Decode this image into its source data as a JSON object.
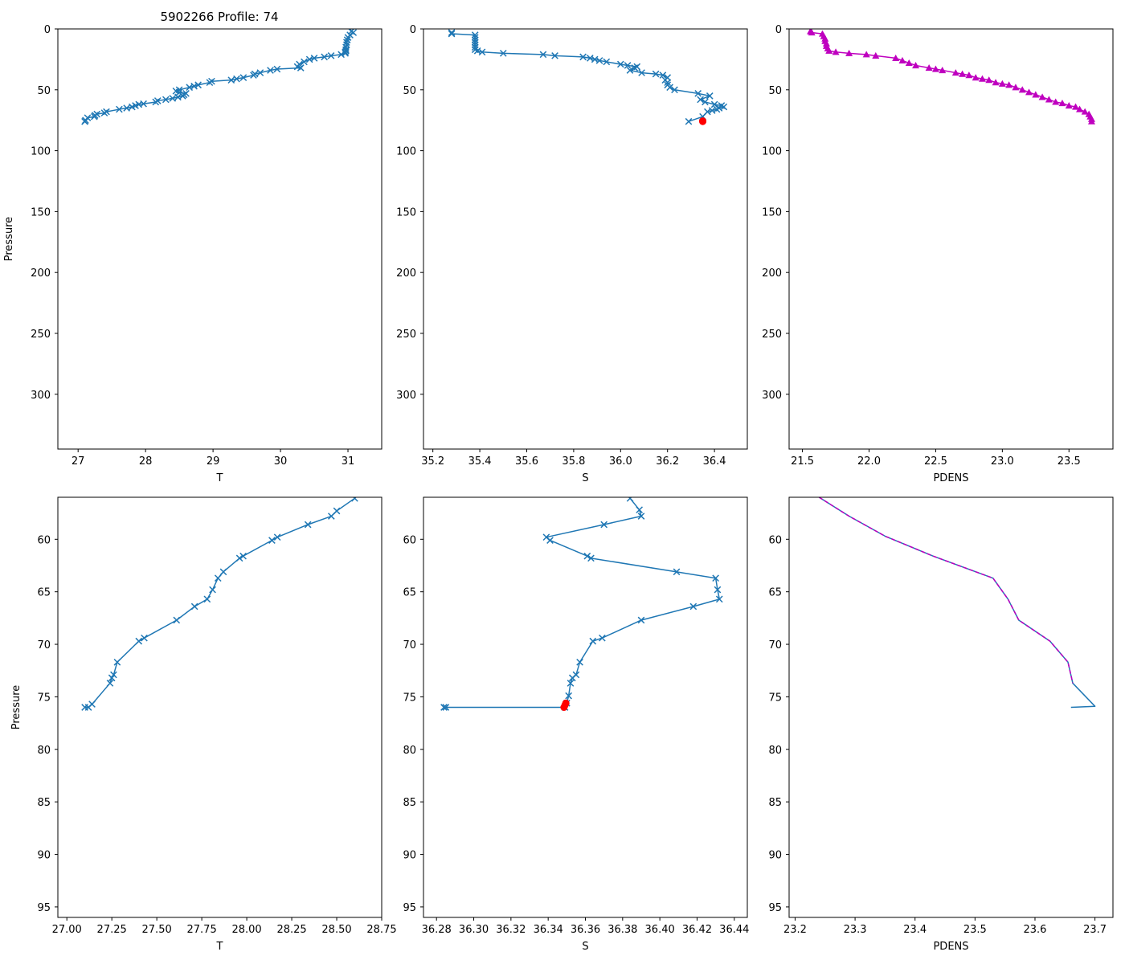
{
  "figure_title": "5902266 Profile: 74",
  "chart_data": [
    {
      "type": "line",
      "panel": "top-left",
      "xlabel": "T",
      "ylabel": "Pressure",
      "xlim": [
        26.7,
        31.5
      ],
      "ylim": [
        345,
        0
      ],
      "y_inverted": true,
      "xticks": [
        27,
        28,
        29,
        30,
        31
      ],
      "xtick_labels": [
        "27",
        "28",
        "29",
        "30",
        "31"
      ],
      "yticks": [
        0,
        50,
        100,
        150,
        200,
        250,
        300
      ],
      "ytick_labels": [
        "0",
        "50",
        "100",
        "150",
        "200",
        "250",
        "300"
      ],
      "series": [
        {
          "name": "T profile",
          "color": "#1f77b4",
          "marker": "x",
          "x": [
            31.05,
            31.08,
            31.03,
            31.0,
            30.99,
            30.98,
            30.98,
            30.97,
            30.97,
            30.97,
            30.96,
            30.96,
            30.9,
            30.75,
            30.65,
            30.5,
            30.43,
            30.35,
            30.28,
            30.25,
            30.3,
            29.95,
            29.85,
            29.7,
            29.62,
            29.6,
            29.45,
            29.35,
            29.27,
            28.98,
            28.95,
            28.78,
            28.72,
            28.65,
            28.5,
            28.45,
            28.5,
            28.6,
            28.57,
            28.55,
            28.48,
            28.4,
            28.3,
            28.18,
            28.15,
            27.97,
            27.9,
            27.85,
            27.8,
            27.72,
            27.61,
            27.42,
            27.39,
            27.28,
            27.25,
            27.24,
            27.14,
            27.11,
            27.1
          ],
          "y": [
            2,
            3,
            5,
            7,
            9,
            11,
            13,
            15,
            17,
            18,
            19,
            20,
            21,
            22,
            23,
            24,
            25,
            27,
            29,
            31,
            32,
            33,
            34,
            36,
            37,
            38,
            40,
            41,
            42,
            43,
            44,
            46,
            47,
            48,
            50,
            51,
            52,
            53,
            54,
            55,
            56,
            57,
            58,
            59,
            60,
            61.5,
            62,
            63,
            64,
            65,
            66,
            68,
            69,
            70,
            71,
            72,
            73,
            75,
            76
          ]
        },
        {
          "name": "T profile end",
          "color": "#1f77b4",
          "marker": "x",
          "x": [
            27.1
          ],
          "y": [
            76
          ]
        }
      ]
    },
    {
      "type": "line",
      "panel": "top-middle",
      "xlabel": "S",
      "ylabel": "",
      "xlim": [
        35.16,
        36.54
      ],
      "ylim": [
        345,
        0
      ],
      "y_inverted": true,
      "xticks": [
        35.2,
        35.4,
        35.6,
        35.8,
        36.0,
        36.2,
        36.4
      ],
      "xtick_labels": [
        "35.2",
        "35.4",
        "35.6",
        "35.8",
        "36.0",
        "36.2",
        "36.4"
      ],
      "yticks": [
        0,
        50,
        100,
        150,
        200,
        250,
        300
      ],
      "ytick_labels": [
        "0",
        "50",
        "100",
        "150",
        "200",
        "250",
        "300"
      ],
      "series": [
        {
          "name": "S profile",
          "color": "#1f77b4",
          "marker": "x",
          "x": [
            35.28,
            35.28,
            35.38,
            35.38,
            35.38,
            35.38,
            35.38,
            35.38,
            35.38,
            35.39,
            35.41,
            35.5,
            35.67,
            35.72,
            35.84,
            35.87,
            35.89,
            35.91,
            35.94,
            36.0,
            36.03,
            36.07,
            36.06,
            36.04,
            36.09,
            36.15,
            36.18,
            36.2,
            36.19,
            36.2,
            36.2,
            36.21,
            36.23,
            36.33,
            36.38,
            36.34,
            36.36,
            36.4,
            36.43,
            36.44,
            36.42,
            36.41,
            36.39,
            36.37,
            36.35,
            36.29
          ],
          "y": [
            3,
            4,
            5,
            7,
            9,
            11,
            13,
            15,
            17,
            18,
            19,
            20,
            21,
            22,
            23,
            24,
            25,
            26,
            27,
            29,
            30,
            31,
            32,
            34,
            36,
            37,
            38,
            40,
            42,
            44,
            46,
            48,
            50,
            53,
            55,
            58,
            60,
            62,
            63,
            64,
            65,
            66,
            67,
            68,
            72,
            76
          ]
        },
        {
          "name": "S flagged",
          "color": "#ff0000",
          "marker": "o",
          "x": [
            36.35,
            36.35
          ],
          "y": [
            75.6,
            76
          ]
        }
      ]
    },
    {
      "type": "line",
      "panel": "top-right",
      "xlabel": "PDENS",
      "ylabel": "",
      "xlim": [
        21.4,
        23.83
      ],
      "ylim": [
        345,
        0
      ],
      "y_inverted": true,
      "xticks": [
        21.5,
        22.0,
        22.5,
        23.0,
        23.5
      ],
      "xtick_labels": [
        "21.5",
        "22.0",
        "22.5",
        "23.0",
        "23.5"
      ],
      "yticks": [
        0,
        50,
        100,
        150,
        200,
        250,
        300
      ],
      "ytick_labels": [
        "0",
        "50",
        "100",
        "150",
        "200",
        "250",
        "300"
      ],
      "series": [
        {
          "name": "PDENS profile",
          "color": "#bf00bf",
          "marker": "^",
          "x": [
            21.56,
            21.57,
            21.65,
            21.66,
            21.67,
            21.67,
            21.68,
            21.68,
            21.69,
            21.7,
            21.75,
            21.85,
            21.98,
            22.05,
            22.2,
            22.25,
            22.3,
            22.35,
            22.45,
            22.5,
            22.55,
            22.65,
            22.7,
            22.75,
            22.8,
            22.85,
            22.9,
            22.95,
            23.0,
            23.05,
            23.1,
            23.15,
            23.2,
            23.25,
            23.3,
            23.35,
            23.4,
            23.45,
            23.5,
            23.55,
            23.58,
            23.62,
            23.65,
            23.66,
            23.67,
            23.67
          ],
          "y": [
            2,
            3,
            4,
            6,
            8,
            10,
            12,
            14,
            16,
            18,
            19,
            20,
            21,
            22,
            24,
            26,
            28,
            30,
            32,
            33,
            34,
            36,
            37,
            38,
            40,
            41,
            42,
            44,
            45,
            46,
            48,
            50,
            52,
            54,
            56,
            58,
            60,
            61,
            63,
            64,
            66,
            68,
            70,
            72,
            74,
            76
          ]
        }
      ]
    },
    {
      "type": "line",
      "panel": "bottom-left",
      "xlabel": "T",
      "ylabel": "Pressure",
      "xlim": [
        26.95,
        28.75
      ],
      "ylim": [
        96,
        56
      ],
      "y_inverted": true,
      "xticks": [
        27.0,
        27.25,
        27.5,
        27.75,
        28.0,
        28.25,
        28.5,
        28.75
      ],
      "xtick_labels": [
        "27.00",
        "27.25",
        "27.50",
        "27.75",
        "28.00",
        "28.25",
        "28.50",
        "28.75"
      ],
      "yticks": [
        60,
        65,
        70,
        75,
        80,
        85,
        90,
        95
      ],
      "ytick_labels": [
        "60",
        "65",
        "70",
        "75",
        "80",
        "85",
        "90",
        "95"
      ],
      "series": [
        {
          "name": "T profile (zoom)",
          "color": "#1f77b4",
          "marker": "x",
          "x": [
            28.6,
            28.5,
            28.47,
            28.34,
            28.17,
            28.14,
            27.98,
            27.96,
            27.87,
            27.84,
            27.81,
            27.78,
            27.71,
            27.61,
            27.43,
            27.4,
            27.28,
            27.26,
            27.25,
            27.24,
            27.14,
            27.12,
            27.1
          ],
          "y": [
            56.1,
            57.3,
            57.8,
            58.6,
            59.8,
            60.1,
            61.6,
            61.8,
            63.1,
            63.7,
            64.8,
            65.7,
            66.4,
            67.7,
            69.4,
            69.7,
            71.7,
            72.9,
            73.2,
            73.7,
            75.7,
            76.0,
            76.0
          ]
        }
      ]
    },
    {
      "type": "line",
      "panel": "bottom-middle",
      "xlabel": "S",
      "ylabel": "",
      "xlim": [
        36.273,
        36.447
      ],
      "ylim": [
        96,
        56
      ],
      "y_inverted": true,
      "xticks": [
        36.28,
        36.3,
        36.32,
        36.34,
        36.36,
        36.38,
        36.4,
        36.42,
        36.44
      ],
      "xtick_labels": [
        "36.28",
        "36.30",
        "36.32",
        "36.34",
        "36.36",
        "36.38",
        "36.40",
        "36.42",
        "36.44"
      ],
      "yticks": [
        60,
        65,
        70,
        75,
        80,
        85,
        90,
        95
      ],
      "ytick_labels": [
        "60",
        "65",
        "70",
        "75",
        "80",
        "85",
        "90",
        "95"
      ],
      "series": [
        {
          "name": "S profile (zoom)",
          "color": "#1f77b4",
          "marker": "x",
          "x": [
            36.384,
            36.389,
            36.39,
            36.37,
            36.339,
            36.341,
            36.361,
            36.363,
            36.409,
            36.43,
            36.431,
            36.432,
            36.418,
            36.39,
            36.369,
            36.364,
            36.357,
            36.355,
            36.353,
            36.352,
            36.351,
            36.35,
            36.349,
            36.285,
            36.284
          ],
          "y": [
            56.1,
            57.2,
            57.8,
            58.6,
            59.8,
            60.1,
            61.6,
            61.8,
            63.1,
            63.7,
            64.8,
            65.7,
            66.4,
            67.7,
            69.4,
            69.7,
            71.7,
            72.9,
            73.2,
            73.7,
            74.9,
            75.6,
            76.0,
            76.0,
            76.0
          ]
        },
        {
          "name": "S flagged (zoom)",
          "color": "#ff0000",
          "marker": "o",
          "x": [
            36.3495,
            36.349,
            36.3485
          ],
          "y": [
            75.6,
            75.8,
            76.0
          ]
        }
      ]
    },
    {
      "type": "line",
      "panel": "bottom-right",
      "xlabel": "PDENS",
      "ylabel": "",
      "xlim": [
        23.19,
        23.73
      ],
      "ylim": [
        96,
        56
      ],
      "y_inverted": true,
      "xticks": [
        23.2,
        23.3,
        23.4,
        23.5,
        23.6,
        23.7
      ],
      "xtick_labels": [
        "23.2",
        "23.3",
        "23.4",
        "23.5",
        "23.6",
        "23.7"
      ],
      "yticks": [
        60,
        65,
        70,
        75,
        80,
        85,
        90,
        95
      ],
      "ytick_labels": [
        "60",
        "65",
        "70",
        "75",
        "80",
        "85",
        "90",
        "95"
      ],
      "series": [
        {
          "name": "PDENS profile (zoom)",
          "color": "#1f77b4",
          "marker": "none",
          "x": [
            23.24,
            23.29,
            23.35,
            23.43,
            23.53,
            23.555,
            23.573,
            23.625,
            23.655,
            23.663,
            23.7,
            23.66
          ],
          "y": [
            56.0,
            57.8,
            59.7,
            61.6,
            63.7,
            65.7,
            67.7,
            69.7,
            71.7,
            73.7,
            75.9,
            76.0
          ]
        },
        {
          "name": "PDENS overlay (zoom)",
          "color": "#bf00bf",
          "marker": "none",
          "dashed": true,
          "x": [
            23.24,
            23.29,
            23.35,
            23.43,
            23.53,
            23.555,
            23.573,
            23.625,
            23.655,
            23.663
          ],
          "y": [
            56.0,
            57.8,
            59.7,
            61.6,
            63.7,
            65.7,
            67.7,
            69.7,
            71.7,
            73.7
          ]
        }
      ]
    }
  ]
}
